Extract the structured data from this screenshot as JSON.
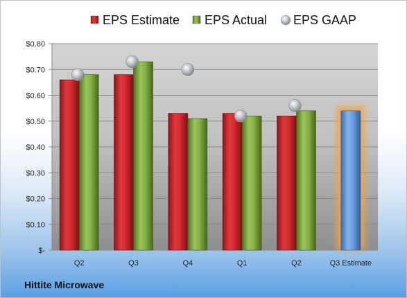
{
  "company": "Hittite Microwave",
  "chart_data": {
    "type": "bar",
    "categories": [
      "Q2",
      "Q3",
      "Q4",
      "Q1",
      "Q2",
      "Q3 Estimate"
    ],
    "series": [
      {
        "name": "EPS Estimate",
        "kind": "bar",
        "color": "#c9282d",
        "values": [
          0.66,
          0.68,
          0.53,
          0.53,
          0.52,
          null
        ]
      },
      {
        "name": "EPS Actual",
        "kind": "bar",
        "color": "#7aa43a",
        "values": [
          0.68,
          0.73,
          0.51,
          0.52,
          0.54,
          null
        ]
      },
      {
        "name": "EPS GAAP",
        "kind": "marker",
        "color": "#b8bec4",
        "values": [
          0.68,
          0.73,
          0.7,
          0.52,
          0.56,
          null
        ]
      },
      {
        "name": "",
        "kind": "bar",
        "color": "#5e92d6",
        "highlight": "#f4a443",
        "values": [
          null,
          null,
          null,
          null,
          null,
          0.54
        ]
      }
    ],
    "ylim": [
      0,
      0.8
    ],
    "yticks": [
      0,
      0.1,
      0.2,
      0.3,
      0.4,
      0.5,
      0.6,
      0.7,
      0.8
    ],
    "ytick_labels": [
      "$-",
      "$0.10",
      "$0.20",
      "$0.30",
      "$0.40",
      "$0.50",
      "$0.60",
      "$0.70",
      "$0.80"
    ],
    "legend_position": "top",
    "grid": true
  }
}
